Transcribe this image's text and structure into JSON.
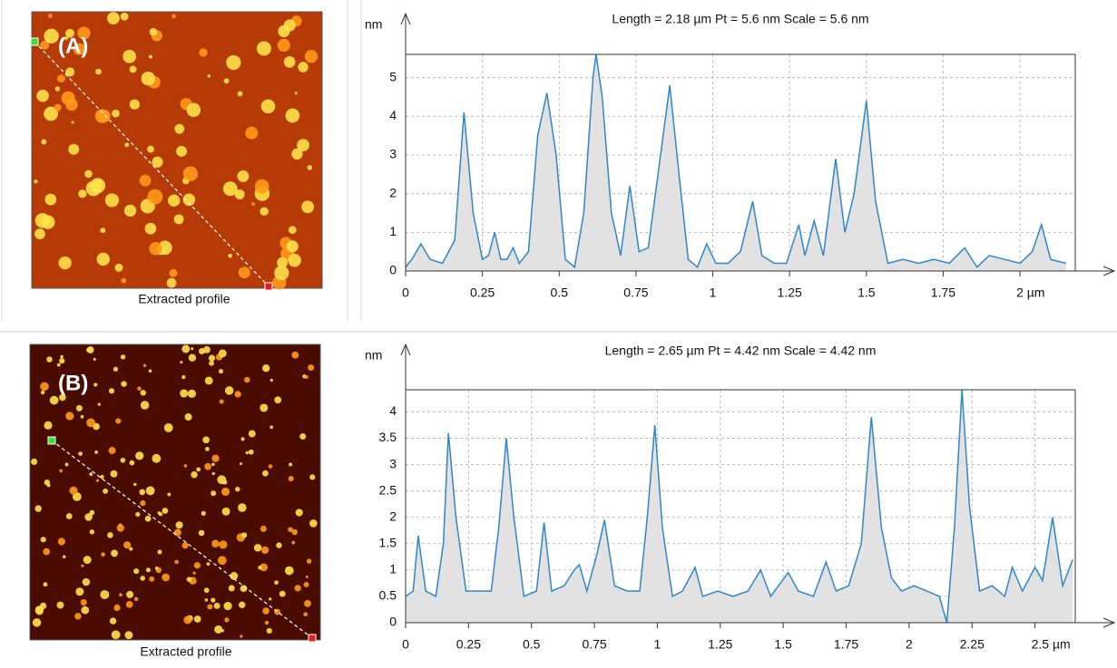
{
  "panels": [
    {
      "label": "(A)",
      "caption": "Extracted profile"
    },
    {
      "label": "(B)",
      "caption": "Extracted profile"
    }
  ],
  "chart_data": [
    {
      "type": "area",
      "title": "Length = 2.18 µm  Pt = 5.6 nm  Scale = 5.6 nm",
      "ylabel": "nm",
      "color": "#2f86c8",
      "fill_color": "#e2e2e2",
      "grid": true,
      "x": [
        0,
        0.02,
        0.05,
        0.08,
        0.12,
        0.16,
        0.19,
        0.22,
        0.25,
        0.27,
        0.29,
        0.31,
        0.33,
        0.35,
        0.37,
        0.4,
        0.43,
        0.46,
        0.49,
        0.52,
        0.55,
        0.58,
        0.61,
        0.62,
        0.64,
        0.67,
        0.7,
        0.73,
        0.76,
        0.79,
        0.83,
        0.86,
        0.89,
        0.92,
        0.95,
        0.98,
        1.01,
        1.05,
        1.09,
        1.13,
        1.16,
        1.2,
        1.24,
        1.28,
        1.3,
        1.33,
        1.36,
        1.4,
        1.43,
        1.46,
        1.5,
        1.53,
        1.57,
        1.62,
        1.67,
        1.72,
        1.77,
        1.82,
        1.86,
        1.9,
        1.95,
        2.0,
        2.04,
        2.07,
        2.1,
        2.15
      ],
      "values": [
        0.1,
        0.3,
        0.7,
        0.3,
        0.2,
        0.8,
        4.1,
        1.5,
        0.3,
        0.4,
        1.0,
        0.3,
        0.3,
        0.6,
        0.2,
        0.5,
        3.5,
        4.6,
        3.0,
        0.3,
        0.1,
        1.5,
        5.0,
        5.6,
        4.5,
        1.5,
        0.4,
        2.2,
        0.5,
        0.6,
        3.0,
        4.8,
        2.5,
        0.3,
        0.1,
        0.7,
        0.2,
        0.2,
        0.5,
        1.8,
        0.4,
        0.2,
        0.2,
        1.2,
        0.4,
        1.3,
        0.4,
        2.9,
        1.0,
        2.0,
        4.4,
        1.8,
        0.2,
        0.3,
        0.2,
        0.3,
        0.2,
        0.6,
        0.1,
        0.4,
        0.3,
        0.2,
        0.5,
        1.2,
        0.3,
        0.2
      ],
      "xlim": [
        0,
        2.18
      ],
      "ylim": [
        0,
        5.6
      ],
      "xticks": [
        0,
        0.25,
        0.5,
        0.75,
        1,
        1.25,
        1.5,
        1.75,
        {
          "value": 2,
          "label": "2 µm"
        }
      ],
      "yticks": [
        0,
        1,
        2,
        3,
        4,
        5
      ]
    },
    {
      "type": "area",
      "title": "Length = 2.65 µm  Pt = 4.42 nm  Scale = 4.42 nm",
      "ylabel": "nm",
      "color": "#2f86c8",
      "fill_color": "#e2e2e2",
      "grid": true,
      "x": [
        0,
        0.03,
        0.05,
        0.08,
        0.12,
        0.15,
        0.17,
        0.2,
        0.24,
        0.3,
        0.34,
        0.37,
        0.4,
        0.43,
        0.47,
        0.52,
        0.55,
        0.58,
        0.63,
        0.67,
        0.69,
        0.72,
        0.76,
        0.79,
        0.83,
        0.88,
        0.93,
        0.96,
        0.99,
        1.02,
        1.06,
        1.1,
        1.15,
        1.18,
        1.24,
        1.3,
        1.36,
        1.41,
        1.45,
        1.52,
        1.56,
        1.62,
        1.67,
        1.71,
        1.76,
        1.81,
        1.85,
        1.89,
        1.93,
        1.97,
        2.02,
        2.07,
        2.12,
        2.15,
        2.18,
        2.21,
        2.24,
        2.28,
        2.33,
        2.38,
        2.41,
        2.45,
        2.5,
        2.53,
        2.57,
        2.61,
        2.65
      ],
      "values": [
        0.5,
        0.6,
        1.65,
        0.6,
        0.5,
        1.5,
        3.6,
        2.0,
        0.6,
        0.6,
        0.6,
        1.8,
        3.5,
        2.0,
        0.5,
        0.6,
        1.9,
        0.6,
        0.7,
        1.0,
        1.1,
        0.6,
        1.3,
        1.95,
        0.7,
        0.6,
        0.6,
        2.0,
        3.75,
        1.8,
        0.5,
        0.6,
        1.05,
        0.5,
        0.6,
        0.5,
        0.6,
        1.0,
        0.5,
        0.95,
        0.6,
        0.5,
        1.15,
        0.6,
        0.7,
        1.5,
        3.9,
        1.8,
        0.85,
        0.6,
        0.7,
        0.6,
        0.5,
        0,
        1.8,
        4.42,
        2.2,
        0.6,
        0.7,
        0.5,
        1.05,
        0.6,
        1.05,
        0.8,
        2.0,
        0.7,
        1.2
      ],
      "xlim": [
        0,
        2.66
      ],
      "ylim": [
        0,
        4.42
      ],
      "xticks": [
        0,
        0.25,
        0.5,
        0.75,
        1,
        1.25,
        1.5,
        1.75,
        2,
        2.25,
        {
          "value": 2.5,
          "label": "2.5 µm"
        }
      ],
      "yticks": [
        0,
        0.5,
        1,
        1.5,
        2,
        2.5,
        3,
        3.5,
        4
      ]
    }
  ]
}
